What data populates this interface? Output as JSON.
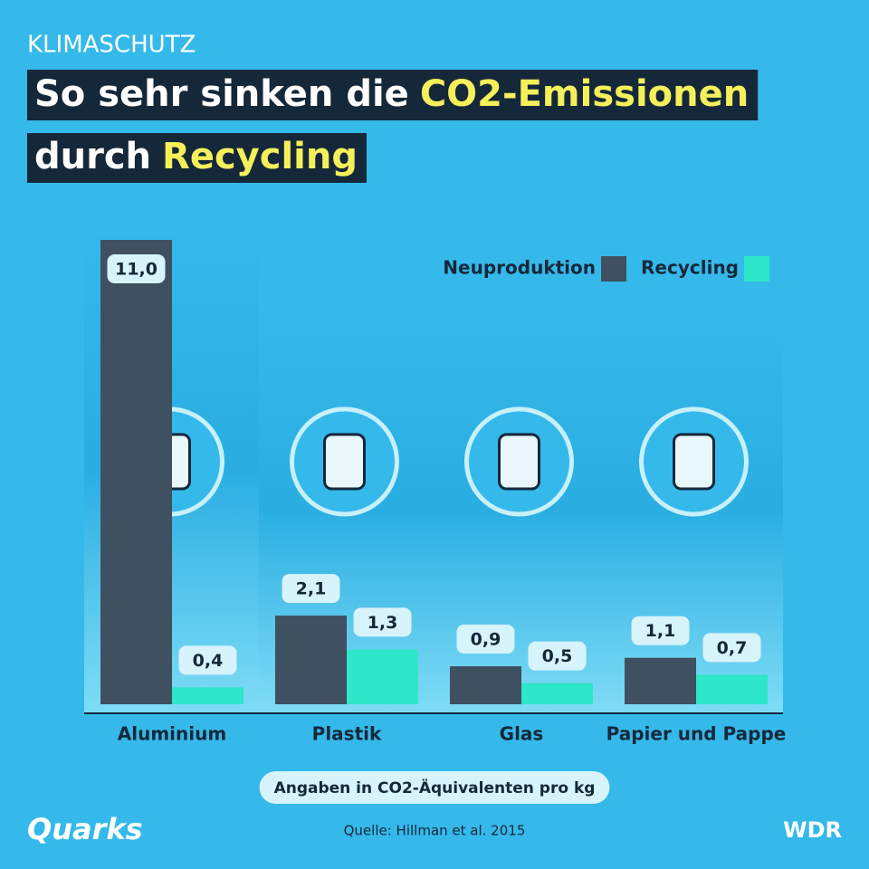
{
  "kicker": "KLIMASCHUTZ",
  "chart_data": {
    "type": "bar",
    "title": {
      "line1": [
        "So sehr sinken die",
        "CO2-Emissionen"
      ],
      "line2": [
        "durch",
        "Recycling"
      ]
    },
    "categories": [
      "Aluminium",
      "Plastik",
      "Glas",
      "Papier und Pappe"
    ],
    "series": [
      {
        "name": "Neuproduktion",
        "color": "#3f5060",
        "values": [
          11.0,
          2.1,
          0.9,
          1.1
        ],
        "value_labels": [
          "11,0",
          "2,1",
          "0,9",
          "1,1"
        ]
      },
      {
        "name": "Recycling",
        "color": "#2ee6c8",
        "values": [
          0.4,
          1.3,
          0.5,
          0.7
        ],
        "value_labels": [
          "0,4",
          "1,3",
          "0,5",
          "0,7"
        ]
      }
    ],
    "legend": "top-right",
    "note": "Angaben in CO2-Äquivalenten pro kg"
  },
  "footer": {
    "source": "Quelle: Hillman et al. 2015",
    "logo_left": "Quarks",
    "logo_right": "WDR"
  }
}
